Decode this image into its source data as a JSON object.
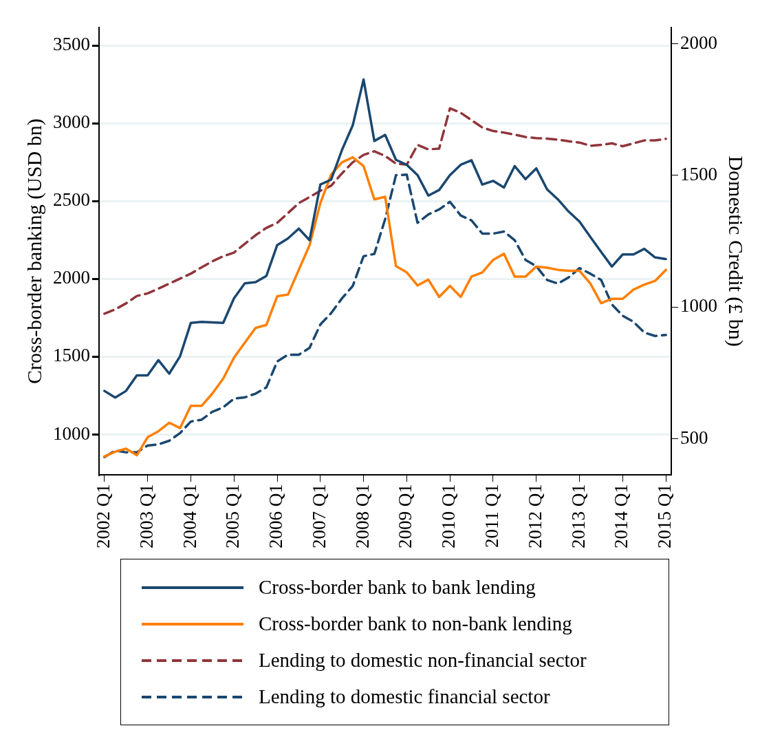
{
  "chart_data": {
    "type": "line",
    "ylabel": "Cross-border banking (USD bn)",
    "y2label": "Domestic Credit (£ bn)",
    "categories": [
      "2002 Q1",
      null,
      null,
      null,
      "2003 Q1",
      null,
      null,
      null,
      "2004 Q1",
      null,
      null,
      null,
      "2005 Q1",
      null,
      null,
      null,
      "2006 Q1",
      null,
      null,
      null,
      "2007 Q1",
      null,
      null,
      null,
      "2008 Q1",
      null,
      null,
      null,
      "2009 Q1",
      null,
      null,
      null,
      "2010 Q1",
      null,
      null,
      null,
      "2011 Q1",
      null,
      null,
      null,
      "2012 Q1",
      null,
      null,
      null,
      "2013 Q1",
      null,
      null,
      null,
      "2014 Q1",
      null,
      null,
      null,
      "2015 Q1"
    ],
    "ylim": [
      740,
      3615
    ],
    "yticks": [
      1000,
      1500,
      2000,
      2500,
      3000,
      3500
    ],
    "y2lim": [
      362,
      2062
    ],
    "y2ticks": [
      500,
      1000,
      1500,
      2000
    ],
    "grid": "y",
    "legend": "bottom",
    "marker": "none",
    "series": [
      {
        "name": "Cross-border bank to bank lending",
        "color": "#1a476f",
        "line_style": "solid",
        "values": [
          1280,
          1237,
          1280,
          1380,
          1380,
          1478,
          1391,
          1502,
          1717,
          1724,
          1720,
          1717,
          1875,
          1971,
          1979,
          2019,
          2217,
          2260,
          2323,
          2249,
          2606,
          2638,
          2828,
          2987,
          3281,
          2886,
          2925,
          2765,
          2733,
          2667,
          2535,
          2571,
          2667,
          2733,
          2762,
          2606,
          2630,
          2587,
          2725,
          2641,
          2710,
          2575,
          2511,
          2432,
          2368,
          2270,
          2174,
          2079,
          2157,
          2157,
          2193,
          2138,
          2127
        ]
      },
      {
        "name": "Cross-border bank to non-bank lending",
        "color": "#ff7f00",
        "line_style": "solid",
        "values": [
          859,
          890,
          909,
          867,
          983,
          1021,
          1076,
          1041,
          1184,
          1184,
          1264,
          1359,
          1494,
          1590,
          1685,
          1704,
          1888,
          1899,
          2058,
          2217,
          2487,
          2670,
          2749,
          2781,
          2725,
          2511,
          2527,
          2082,
          2042,
          1958,
          1995,
          1884,
          1955,
          1884,
          2015,
          2042,
          2122,
          2161,
          2015,
          2015,
          2079,
          2072,
          2058,
          2052,
          2052,
          1971,
          1844,
          1872,
          1872,
          1931,
          1963,
          1987,
          2058
        ]
      },
      {
        "name": "Lending to domestic non-financial sector",
        "color": "#90353b",
        "line_style": "dashed",
        "axis": "y2",
        "values": [
          975,
          991,
          1014,
          1042,
          1052,
          1070,
          1089,
          1108,
          1127,
          1151,
          1174,
          1193,
          1207,
          1240,
          1273,
          1301,
          1320,
          1357,
          1395,
          1418,
          1442,
          1461,
          1508,
          1550,
          1578,
          1592,
          1574,
          1545,
          1541,
          1616,
          1599,
          1602,
          1755,
          1738,
          1710,
          1682,
          1669,
          1663,
          1655,
          1646,
          1642,
          1640,
          1636,
          1630,
          1625,
          1613,
          1616,
          1622,
          1611,
          1622,
          1633,
          1633,
          1639
        ]
      },
      {
        "name": "Lending to domestic financial sector",
        "color": "#1a476f",
        "line_style": "dashed",
        "axis": "y2",
        "values": [
          430,
          455,
          448,
          448,
          474,
          478,
          492,
          521,
          565,
          572,
          602,
          619,
          652,
          657,
          671,
          695,
          793,
          819,
          819,
          845,
          934,
          977,
          1033,
          1080,
          1193,
          1202,
          1334,
          1501,
          1503,
          1320,
          1352,
          1371,
          1400,
          1348,
          1329,
          1279,
          1279,
          1287,
          1254,
          1179,
          1155,
          1103,
          1089,
          1113,
          1148,
          1127,
          1103,
          1010,
          967,
          944,
          903,
          890,
          894
        ]
      }
    ]
  }
}
